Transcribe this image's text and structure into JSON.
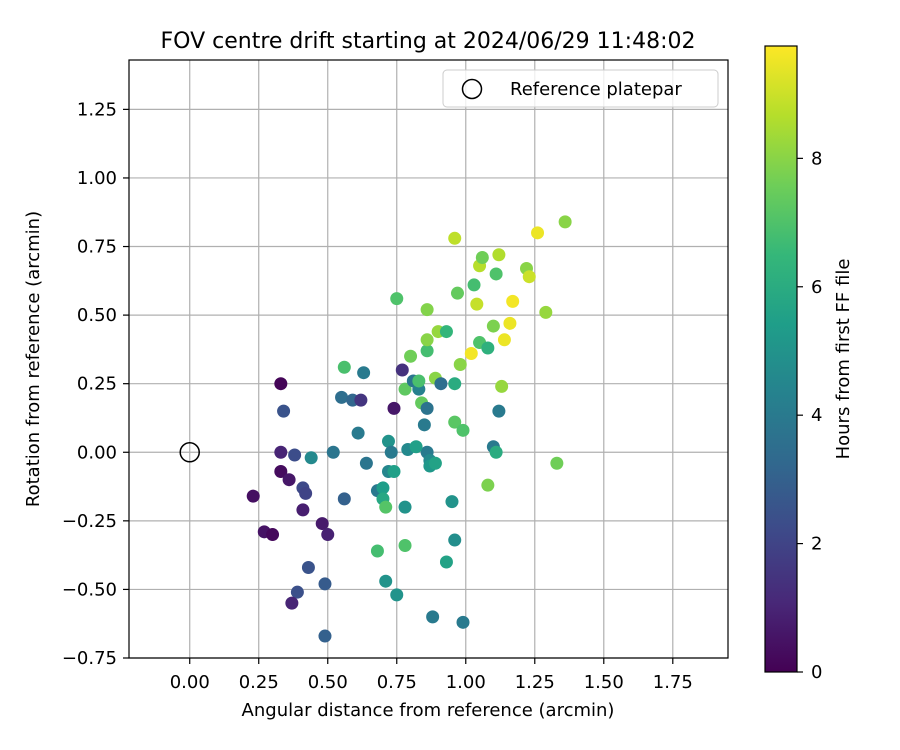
{
  "chart_data": {
    "type": "scatter",
    "title": "FOV centre drift starting at 2024/06/29 11:48:02",
    "xlabel": "Angular distance from reference (arcmin)",
    "ylabel": "Rotation from reference (arcmin)",
    "xlim": [
      -0.22,
      1.95
    ],
    "ylim": [
      -0.75,
      1.43
    ],
    "xticks": [
      0.0,
      0.25,
      0.5,
      0.75,
      1.0,
      1.25,
      1.5,
      1.75
    ],
    "xtick_labels": [
      "0.00",
      "0.25",
      "0.50",
      "0.75",
      "1.00",
      "1.25",
      "1.50",
      "1.75"
    ],
    "yticks": [
      -0.75,
      -0.5,
      -0.25,
      0.0,
      0.25,
      0.5,
      0.75,
      1.0,
      1.25
    ],
    "ytick_labels": [
      "−0.75",
      "−0.50",
      "−0.25",
      "0.00",
      "0.25",
      "0.50",
      "0.75",
      "1.00",
      "1.25"
    ],
    "grid": true,
    "legend": {
      "placement": "top-right",
      "entries": [
        "Reference platepar"
      ]
    },
    "reference_point": {
      "x": 0.0,
      "y": 0.0,
      "label": "Reference platepar"
    },
    "colorbar": {
      "label": "Hours from first FF file",
      "colormap": "viridis",
      "range": [
        0,
        9.75
      ],
      "ticks": [
        0,
        2,
        4,
        6,
        8
      ],
      "tick_labels": [
        "0",
        "2",
        "4",
        "6",
        "8"
      ]
    },
    "points": [
      {
        "x": 0.33,
        "y": 0.25,
        "h": 0.1
      },
      {
        "x": 0.34,
        "y": 0.15,
        "h": 2.5
      },
      {
        "x": 0.33,
        "y": 0.0,
        "h": 1.0
      },
      {
        "x": 0.38,
        "y": -0.01,
        "h": 2.3
      },
      {
        "x": 0.33,
        "y": -0.07,
        "h": 0.3
      },
      {
        "x": 0.36,
        "y": -0.1,
        "h": 0.6
      },
      {
        "x": 0.41,
        "y": -0.13,
        "h": 2.2
      },
      {
        "x": 0.42,
        "y": -0.15,
        "h": 2.0
      },
      {
        "x": 0.23,
        "y": -0.16,
        "h": 0.4
      },
      {
        "x": 0.41,
        "y": -0.21,
        "h": 0.8
      },
      {
        "x": 0.48,
        "y": -0.26,
        "h": 0.7
      },
      {
        "x": 0.27,
        "y": -0.29,
        "h": 0.5
      },
      {
        "x": 0.3,
        "y": -0.3,
        "h": 0.2
      },
      {
        "x": 0.5,
        "y": -0.3,
        "h": 0.9
      },
      {
        "x": 0.43,
        "y": -0.42,
        "h": 2.5
      },
      {
        "x": 0.39,
        "y": -0.51,
        "h": 2.4
      },
      {
        "x": 0.37,
        "y": -0.55,
        "h": 1.0
      },
      {
        "x": 0.49,
        "y": -0.48,
        "h": 2.8
      },
      {
        "x": 0.49,
        "y": -0.67,
        "h": 3.0
      },
      {
        "x": 0.44,
        "y": -0.02,
        "h": 4.6
      },
      {
        "x": 0.52,
        "y": 0.0,
        "h": 3.8
      },
      {
        "x": 0.55,
        "y": 0.2,
        "h": 3.5
      },
      {
        "x": 0.56,
        "y": 0.31,
        "h": 6.9
      },
      {
        "x": 0.59,
        "y": 0.19,
        "h": 3.2
      },
      {
        "x": 0.62,
        "y": 0.19,
        "h": 1.5
      },
      {
        "x": 0.63,
        "y": 0.29,
        "h": 4.0
      },
      {
        "x": 0.61,
        "y": 0.07,
        "h": 4.0
      },
      {
        "x": 0.64,
        "y": -0.04,
        "h": 3.8
      },
      {
        "x": 0.56,
        "y": -0.17,
        "h": 3.0
      },
      {
        "x": 0.68,
        "y": -0.14,
        "h": 3.9
      },
      {
        "x": 0.72,
        "y": 0.04,
        "h": 5.0
      },
      {
        "x": 0.72,
        "y": -0.07,
        "h": 4.5
      },
      {
        "x": 0.74,
        "y": -0.07,
        "h": 5.5
      },
      {
        "x": 0.74,
        "y": 0.16,
        "h": 0.6
      },
      {
        "x": 0.77,
        "y": 0.3,
        "h": 1.4
      },
      {
        "x": 0.75,
        "y": 0.56,
        "h": 7.0
      },
      {
        "x": 0.78,
        "y": 0.23,
        "h": 7.3
      },
      {
        "x": 0.8,
        "y": 0.35,
        "h": 7.6
      },
      {
        "x": 0.81,
        "y": 0.26,
        "h": 3.8
      },
      {
        "x": 0.83,
        "y": 0.23,
        "h": 4.3
      },
      {
        "x": 0.83,
        "y": 0.26,
        "h": 6.9
      },
      {
        "x": 0.84,
        "y": 0.18,
        "h": 7.4
      },
      {
        "x": 0.85,
        "y": 0.1,
        "h": 4.0
      },
      {
        "x": 0.86,
        "y": 0.16,
        "h": 3.7
      },
      {
        "x": 0.86,
        "y": 0.37,
        "h": 6.8
      },
      {
        "x": 0.86,
        "y": 0.41,
        "h": 8.0
      },
      {
        "x": 0.86,
        "y": 0.52,
        "h": 7.9
      },
      {
        "x": 0.86,
        "y": 0.0,
        "h": 4.0
      },
      {
        "x": 0.87,
        "y": -0.03,
        "h": 4.6
      },
      {
        "x": 0.87,
        "y": -0.05,
        "h": 5.2
      },
      {
        "x": 0.89,
        "y": -0.04,
        "h": 5.6
      },
      {
        "x": 0.89,
        "y": 0.27,
        "h": 8.0
      },
      {
        "x": 0.9,
        "y": 0.44,
        "h": 8.2
      },
      {
        "x": 0.91,
        "y": 0.25,
        "h": 3.5
      },
      {
        "x": 0.73,
        "y": 0.0,
        "h": 4.0
      },
      {
        "x": 0.79,
        "y": 0.01,
        "h": 4.6
      },
      {
        "x": 0.82,
        "y": 0.02,
        "h": 5.5
      },
      {
        "x": 0.7,
        "y": -0.13,
        "h": 5.4
      },
      {
        "x": 0.7,
        "y": -0.17,
        "h": 5.8
      },
      {
        "x": 0.71,
        "y": -0.2,
        "h": 7.1
      },
      {
        "x": 0.78,
        "y": -0.2,
        "h": 5.0
      },
      {
        "x": 0.68,
        "y": -0.36,
        "h": 6.8
      },
      {
        "x": 0.78,
        "y": -0.34,
        "h": 7.0
      },
      {
        "x": 0.71,
        "y": -0.47,
        "h": 5.0
      },
      {
        "x": 0.75,
        "y": -0.52,
        "h": 5.0
      },
      {
        "x": 0.88,
        "y": -0.6,
        "h": 4.0
      },
      {
        "x": 0.93,
        "y": -0.4,
        "h": 5.6
      },
      {
        "x": 0.95,
        "y": -0.18,
        "h": 5.0
      },
      {
        "x": 0.96,
        "y": -0.32,
        "h": 4.8
      },
      {
        "x": 0.99,
        "y": -0.62,
        "h": 4.0
      },
      {
        "x": 0.93,
        "y": 0.44,
        "h": 6.4
      },
      {
        "x": 0.96,
        "y": 0.25,
        "h": 6.0
      },
      {
        "x": 0.96,
        "y": 0.11,
        "h": 7.2
      },
      {
        "x": 0.96,
        "y": 0.78,
        "h": 8.8
      },
      {
        "x": 0.97,
        "y": 0.58,
        "h": 7.4
      },
      {
        "x": 0.98,
        "y": 0.32,
        "h": 8.0
      },
      {
        "x": 0.99,
        "y": 0.08,
        "h": 7.0
      },
      {
        "x": 1.02,
        "y": 0.36,
        "h": 9.6
      },
      {
        "x": 1.03,
        "y": 0.61,
        "h": 6.8
      },
      {
        "x": 1.04,
        "y": 0.54,
        "h": 8.9
      },
      {
        "x": 1.05,
        "y": 0.4,
        "h": 7.0
      },
      {
        "x": 1.05,
        "y": 0.68,
        "h": 8.7
      },
      {
        "x": 1.06,
        "y": 0.71,
        "h": 7.6
      },
      {
        "x": 1.08,
        "y": 0.38,
        "h": 6.2
      },
      {
        "x": 1.08,
        "y": -0.12,
        "h": 7.8
      },
      {
        "x": 1.1,
        "y": 0.46,
        "h": 7.8
      },
      {
        "x": 1.1,
        "y": 0.02,
        "h": 4.0
      },
      {
        "x": 1.11,
        "y": 0.0,
        "h": 6.0
      },
      {
        "x": 1.11,
        "y": 0.65,
        "h": 7.0
      },
      {
        "x": 1.12,
        "y": 0.72,
        "h": 8.6
      },
      {
        "x": 1.12,
        "y": 0.15,
        "h": 4.0
      },
      {
        "x": 1.13,
        "y": 0.24,
        "h": 8.2
      },
      {
        "x": 1.14,
        "y": 0.41,
        "h": 9.5
      },
      {
        "x": 1.16,
        "y": 0.47,
        "h": 9.5
      },
      {
        "x": 1.17,
        "y": 0.55,
        "h": 9.6
      },
      {
        "x": 1.22,
        "y": 0.67,
        "h": 8.0
      },
      {
        "x": 1.23,
        "y": 0.64,
        "h": 9.0
      },
      {
        "x": 1.26,
        "y": 0.8,
        "h": 9.5
      },
      {
        "x": 1.29,
        "y": 0.51,
        "h": 8.2
      },
      {
        "x": 1.33,
        "y": -0.04,
        "h": 7.6
      },
      {
        "x": 1.36,
        "y": 0.84,
        "h": 8.0
      }
    ]
  }
}
